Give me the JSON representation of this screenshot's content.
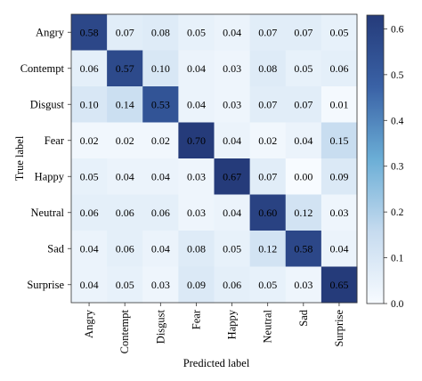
{
  "chart_data": {
    "type": "heatmap",
    "title": "",
    "xlabel": "Predicted label",
    "ylabel": "True label",
    "x_categories": [
      "Angry",
      "Contempt",
      "Disgust",
      "Fear",
      "Happy",
      "Neutral",
      "Sad",
      "Surprise"
    ],
    "y_categories": [
      "Angry",
      "Contempt",
      "Disgust",
      "Fear",
      "Happy",
      "Neutral",
      "Sad",
      "Surprise"
    ],
    "values": [
      [
        "0.58",
        "0.07",
        "0.08",
        "0.05",
        "0.04",
        "0.07",
        "0.07",
        "0.05"
      ],
      [
        "0.06",
        "0.57",
        "0.10",
        "0.04",
        "0.03",
        "0.08",
        "0.05",
        "0.06"
      ],
      [
        "0.10",
        "0.14",
        "0.53",
        "0.04",
        "0.03",
        "0.07",
        "0.07",
        "0.01"
      ],
      [
        "0.02",
        "0.02",
        "0.02",
        "0.70",
        "0.04",
        "0.02",
        "0.04",
        "0.15"
      ],
      [
        "0.05",
        "0.04",
        "0.04",
        "0.03",
        "0.67",
        "0.07",
        "0.00",
        "0.09"
      ],
      [
        "0.06",
        "0.06",
        "0.06",
        "0.03",
        "0.04",
        "0.60",
        "0.12",
        "0.03"
      ],
      [
        "0.04",
        "0.06",
        "0.04",
        "0.08",
        "0.05",
        "0.12",
        "0.58",
        "0.04"
      ],
      [
        "0.04",
        "0.05",
        "0.03",
        "0.09",
        "0.06",
        "0.05",
        "0.03",
        "0.65"
      ]
    ],
    "colorbar": {
      "range": [
        0.0,
        0.63
      ],
      "ticks": [
        "0.0",
        "0.1",
        "0.2",
        "0.3",
        "0.4",
        "0.5",
        "0.6"
      ],
      "colormap": "Blues"
    }
  }
}
